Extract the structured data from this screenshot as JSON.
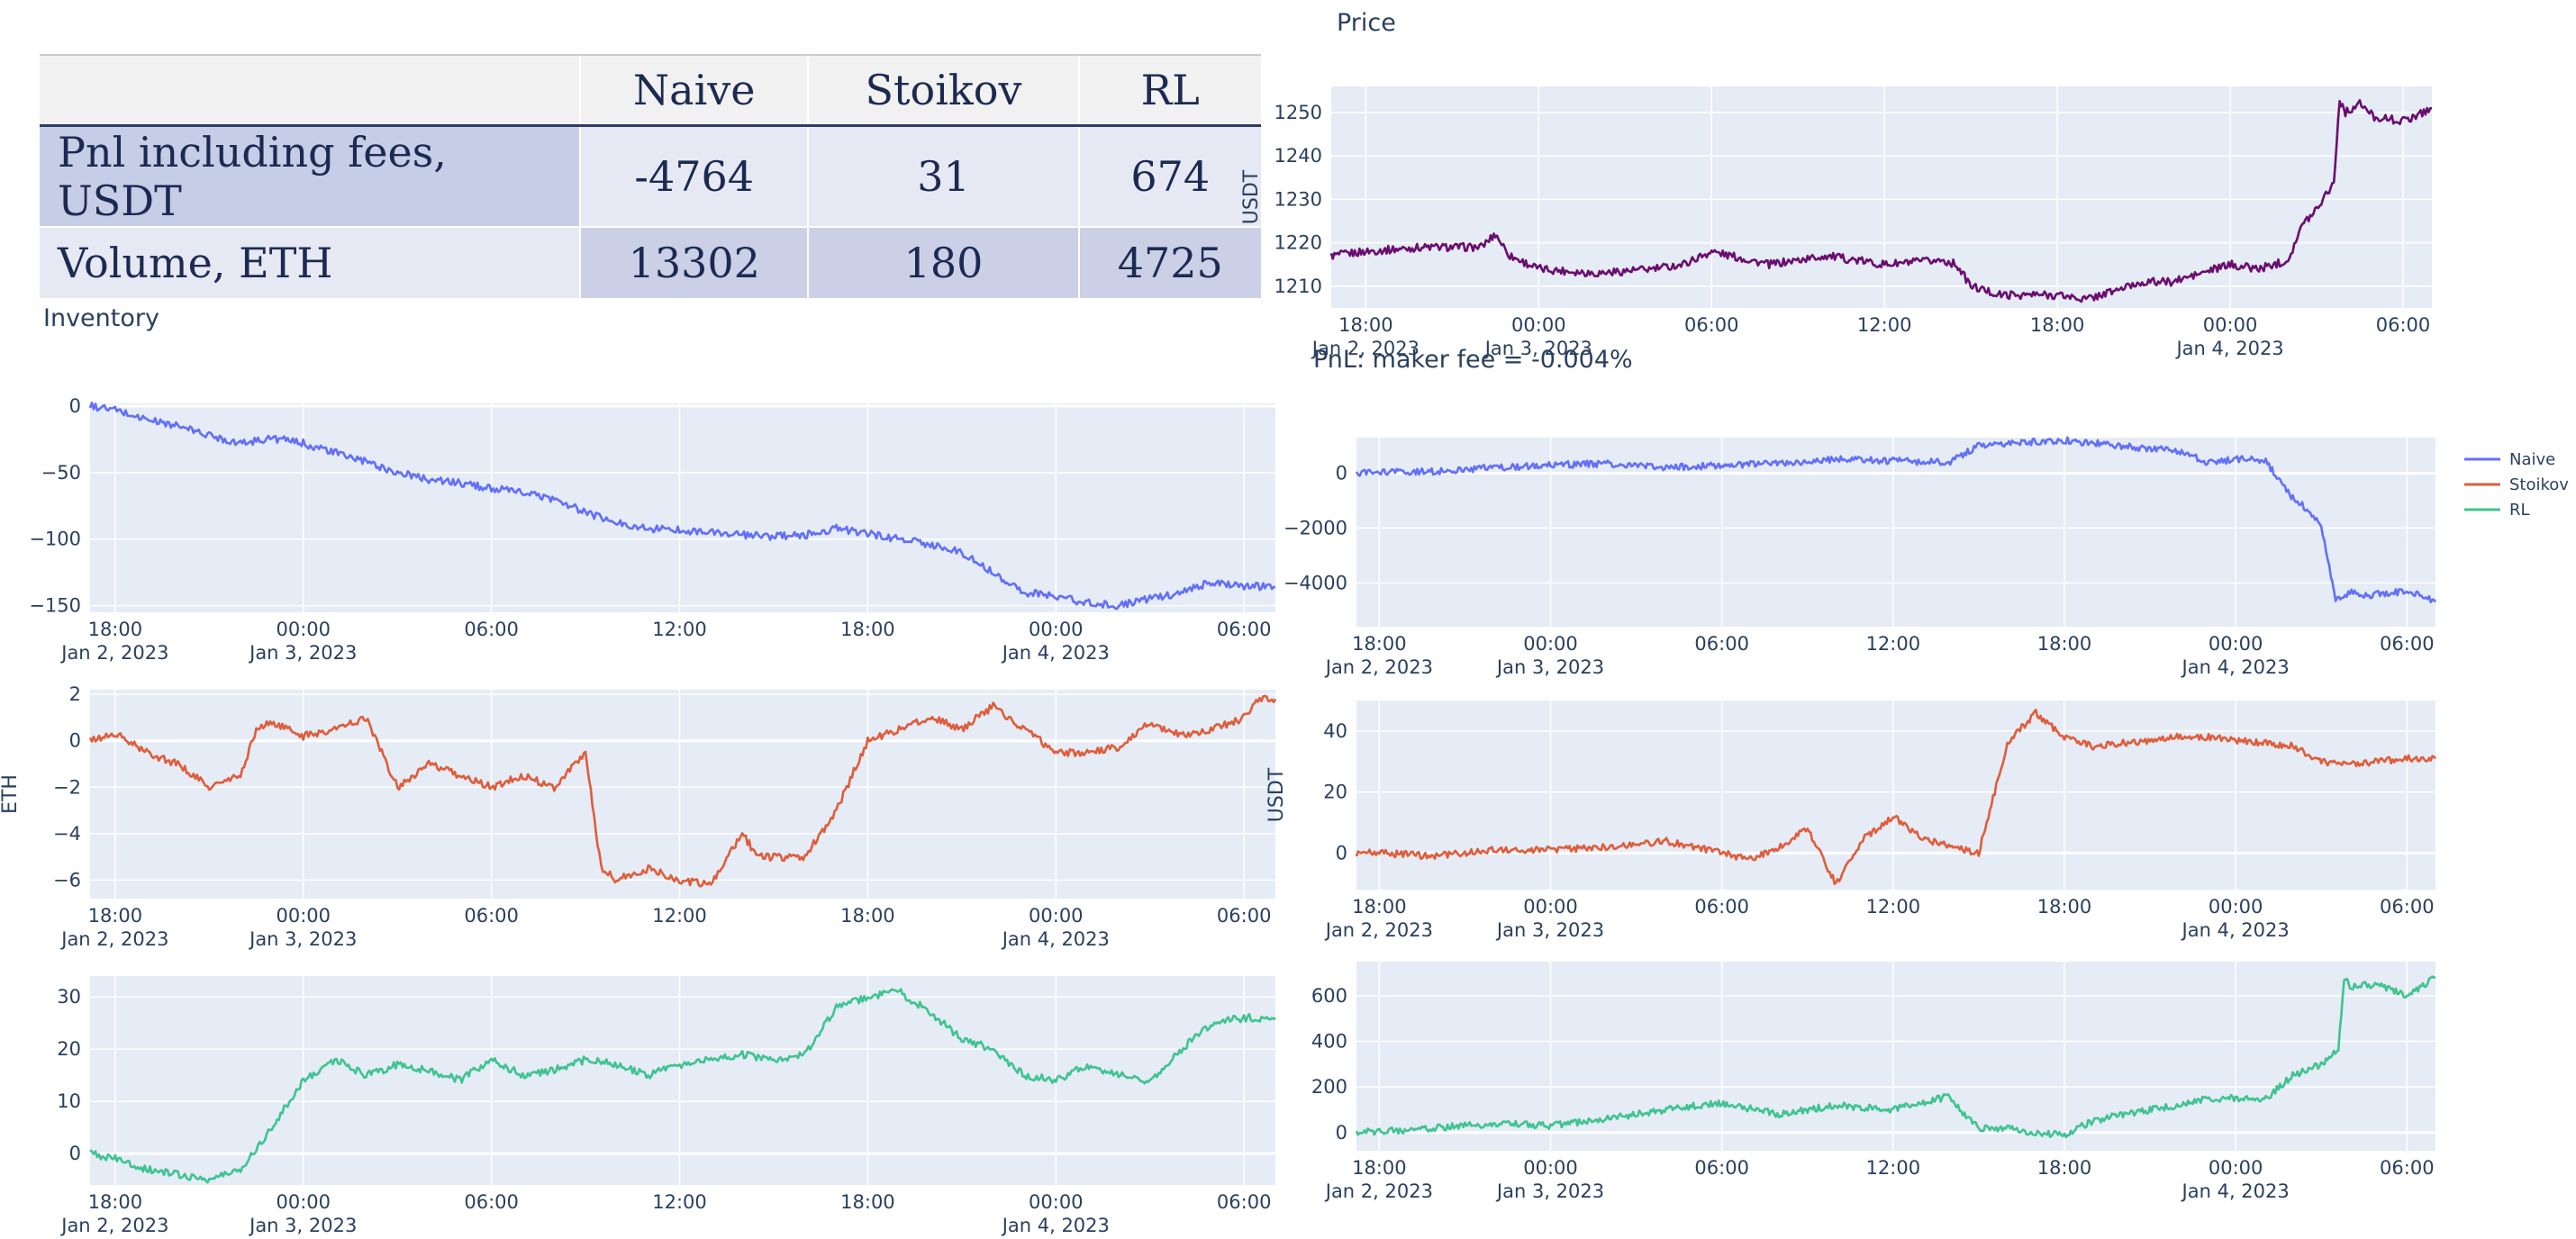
{
  "table": {
    "headers": [
      "",
      "Naive",
      "Stoikov",
      "RL"
    ],
    "rows": [
      {
        "label": "Pnl including fees, USDT",
        "values": [
          "-4764",
          "31",
          "674"
        ]
      },
      {
        "label": "Volume, ETH",
        "values": [
          "13302",
          "180",
          "4725"
        ]
      }
    ]
  },
  "titles": {
    "inventory": "Inventory",
    "price": "Price",
    "pnl": "PnL: maker fee = -0.004%"
  },
  "colors": {
    "Naive": "#636efa",
    "Stoikov": "#e05c3a",
    "RL": "#3fc390",
    "price": "#6a0d70",
    "plot_bg": "#e5ecf6",
    "grid": "#ffffff",
    "text": "#2a3f5f"
  },
  "chart_data": [
    {
      "id": "price",
      "type": "line",
      "series_color": "price",
      "ylabel": "USDT",
      "ylim": [
        1205,
        1256
      ],
      "yticks": [
        1210,
        1220,
        1230,
        1240,
        1250
      ],
      "x_range_hours": [
        -1.2,
        37.0
      ],
      "xticks": [
        {
          "h": 0,
          "l1": "18:00",
          "l2": "Jan 2, 2023"
        },
        {
          "h": 6,
          "l1": "00:00",
          "l2": "Jan 3, 2023"
        },
        {
          "h": 12,
          "l1": "06:00",
          "l2": ""
        },
        {
          "h": 18,
          "l1": "12:00",
          "l2": ""
        },
        {
          "h": 24,
          "l1": "18:00",
          "l2": ""
        },
        {
          "h": 30,
          "l1": "00:00",
          "l2": "Jan 4, 2023"
        },
        {
          "h": 36,
          "l1": "06:00",
          "l2": ""
        }
      ],
      "x_hours": [
        -1.2,
        0,
        2,
        4,
        4.5,
        5,
        6,
        8,
        10,
        11,
        12,
        14,
        16,
        18,
        20,
        20.5,
        21,
        22,
        24,
        25,
        26,
        27,
        28,
        29,
        30,
        31,
        32,
        32.5,
        33,
        33.6,
        33.8,
        34,
        34.5,
        35,
        36,
        37
      ],
      "values": [
        1217,
        1218,
        1219,
        1219,
        1222,
        1217,
        1214,
        1213,
        1214,
        1215,
        1218,
        1215,
        1217,
        1215,
        1216,
        1215,
        1210,
        1208,
        1208,
        1207,
        1209,
        1211,
        1211,
        1213,
        1215,
        1214,
        1216,
        1224,
        1228,
        1234,
        1253,
        1250,
        1252,
        1249,
        1248,
        1251
      ],
      "title": "Price"
    },
    {
      "id": "inv_naive",
      "type": "line",
      "series_color": "Naive",
      "ylabel": "",
      "ylim": [
        -155,
        2
      ],
      "yticks": [
        0,
        -50,
        -100,
        -150
      ],
      "x_range_hours": [
        -0.8,
        37.0
      ],
      "xticks": [
        {
          "h": 0,
          "l1": "18:00",
          "l2": "Jan 2, 2023"
        },
        {
          "h": 6,
          "l1": "00:00",
          "l2": "Jan 3, 2023"
        },
        {
          "h": 12,
          "l1": "06:00",
          "l2": ""
        },
        {
          "h": 18,
          "l1": "12:00",
          "l2": ""
        },
        {
          "h": 24,
          "l1": "18:00",
          "l2": ""
        },
        {
          "h": 30,
          "l1": "00:00",
          "l2": "Jan 4, 2023"
        },
        {
          "h": 36,
          "l1": "06:00",
          "l2": ""
        }
      ],
      "x_hours": [
        -0.8,
        0,
        1,
        2,
        3,
        4,
        5,
        6,
        7,
        8,
        9,
        10,
        11,
        12,
        13,
        14,
        15,
        16,
        17,
        18,
        19,
        20,
        21,
        22,
        23,
        24,
        25,
        26,
        27,
        28,
        29,
        30,
        31,
        32,
        33,
        34,
        35,
        36,
        37
      ],
      "values": [
        0,
        -3,
        -10,
        -15,
        -22,
        -28,
        -24,
        -28,
        -35,
        -42,
        -50,
        -55,
        -58,
        -62,
        -65,
        -70,
        -80,
        -88,
        -92,
        -93,
        -95,
        -97,
        -98,
        -97,
        -92,
        -96,
        -100,
        -104,
        -110,
        -125,
        -140,
        -143,
        -148,
        -150,
        -145,
        -140,
        -132,
        -135,
        -136
      ],
      "title": ""
    },
    {
      "id": "inv_stoikov",
      "type": "line",
      "series_color": "Stoikov",
      "ylabel": "ETH",
      "ylim": [
        -6.8,
        2.2
      ],
      "yticks": [
        2,
        0,
        -2,
        -4,
        -6
      ],
      "x_range_hours": [
        -0.8,
        37.0
      ],
      "xticks": [
        {
          "h": 0,
          "l1": "18:00",
          "l2": "Jan 2, 2023"
        },
        {
          "h": 6,
          "l1": "00:00",
          "l2": "Jan 3, 2023"
        },
        {
          "h": 12,
          "l1": "06:00",
          "l2": ""
        },
        {
          "h": 18,
          "l1": "12:00",
          "l2": ""
        },
        {
          "h": 24,
          "l1": "18:00",
          "l2": ""
        },
        {
          "h": 30,
          "l1": "00:00",
          "l2": "Jan 4, 2023"
        },
        {
          "h": 36,
          "l1": "06:00",
          "l2": ""
        }
      ],
      "x_hours": [
        -0.8,
        0,
        1,
        2,
        3,
        4,
        4.5,
        5,
        6,
        7,
        8,
        9,
        10,
        11,
        12,
        13,
        14,
        15,
        15.5,
        16,
        17,
        18,
        19,
        20,
        20.5,
        21,
        22,
        23,
        24,
        25,
        26,
        27,
        28,
        29,
        30,
        31,
        32,
        33,
        34,
        35,
        36,
        36.5,
        37
      ],
      "values": [
        0,
        0.3,
        -0.5,
        -1,
        -2,
        -1.5,
        0.5,
        0.8,
        0.2,
        0.5,
        1,
        -2,
        -1,
        -1.5,
        -2,
        -1.5,
        -2,
        -0.5,
        -5.5,
        -6,
        -5.5,
        -6,
        -6.2,
        -4,
        -5,
        -5,
        -5,
        -3,
        0,
        0.5,
        1,
        0.5,
        1.5,
        0.5,
        -0.5,
        -0.5,
        -0.3,
        0.8,
        0.2,
        0.5,
        1,
        1.8,
        1.8
      ],
      "title": ""
    },
    {
      "id": "inv_rl",
      "type": "line",
      "series_color": "RL",
      "ylabel": "",
      "ylim": [
        -6,
        34
      ],
      "yticks": [
        0,
        10,
        20,
        30
      ],
      "x_range_hours": [
        -0.8,
        37.0
      ],
      "xticks": [
        {
          "h": 0,
          "l1": "18:00",
          "l2": "Jan 2, 2023"
        },
        {
          "h": 6,
          "l1": "00:00",
          "l2": "Jan 3, 2023"
        },
        {
          "h": 12,
          "l1": "06:00",
          "l2": ""
        },
        {
          "h": 18,
          "l1": "12:00",
          "l2": ""
        },
        {
          "h": 24,
          "l1": "18:00",
          "l2": ""
        },
        {
          "h": 30,
          "l1": "00:00",
          "l2": "Jan 4, 2023"
        },
        {
          "h": 36,
          "l1": "06:00",
          "l2": ""
        }
      ],
      "x_hours": [
        -0.8,
        0,
        1,
        2,
        3,
        4,
        5,
        6,
        7,
        8,
        9,
        10,
        11,
        12,
        13,
        14,
        15,
        16,
        17,
        18,
        19,
        20,
        21,
        22,
        23,
        24,
        25,
        26,
        27,
        28,
        29,
        30,
        31,
        32,
        33,
        34,
        35,
        36,
        37
      ],
      "values": [
        0,
        -1,
        -3,
        -4,
        -5,
        -3,
        5,
        14,
        18,
        15,
        17,
        16,
        14,
        18,
        15,
        16,
        18,
        17,
        15,
        17,
        18,
        19,
        18,
        19,
        28,
        30,
        31,
        27,
        22,
        20,
        15,
        14,
        17,
        15,
        14,
        20,
        25,
        26,
        26
      ],
      "title": ""
    },
    {
      "id": "pnl_naive",
      "type": "line",
      "series_color": "Naive",
      "ylabel": "",
      "ylim": [
        -5600,
        1300
      ],
      "yticks": [
        0,
        -2000,
        -4000
      ],
      "x_range_hours": [
        -0.8,
        37.0
      ],
      "xticks": [
        {
          "h": 0,
          "l1": "18:00",
          "l2": "Jan 2, 2023"
        },
        {
          "h": 6,
          "l1": "00:00",
          "l2": "Jan 3, 2023"
        },
        {
          "h": 12,
          "l1": "06:00",
          "l2": ""
        },
        {
          "h": 18,
          "l1": "12:00",
          "l2": ""
        },
        {
          "h": 24,
          "l1": "18:00",
          "l2": ""
        },
        {
          "h": 30,
          "l1": "00:00",
          "l2": "Jan 4, 2023"
        },
        {
          "h": 36,
          "l1": "06:00",
          "l2": ""
        }
      ],
      "x_hours": [
        -0.8,
        0,
        2,
        4,
        6,
        8,
        10,
        12,
        14,
        16,
        18,
        20,
        21,
        22,
        24,
        26,
        28,
        29,
        30,
        31,
        32,
        32.5,
        33,
        33.5,
        34,
        34.5,
        35,
        36,
        37
      ],
      "values": [
        0,
        20,
        80,
        200,
        300,
        350,
        200,
        300,
        350,
        500,
        450,
        400,
        1000,
        1100,
        1200,
        1000,
        800,
        400,
        500,
        500,
        -900,
        -1300,
        -1900,
        -4700,
        -4300,
        -4500,
        -4400,
        -4300,
        -4700
      ],
      "title": ""
    },
    {
      "id": "pnl_stoikov",
      "type": "line",
      "series_color": "Stoikov",
      "ylabel": "USDT",
      "ylim": [
        -12,
        50
      ],
      "yticks": [
        0,
        20,
        40
      ],
      "x_range_hours": [
        -0.8,
        37.0
      ],
      "xticks": [
        {
          "h": 0,
          "l1": "18:00",
          "l2": "Jan 2, 2023"
        },
        {
          "h": 6,
          "l1": "00:00",
          "l2": "Jan 3, 2023"
        },
        {
          "h": 12,
          "l1": "06:00",
          "l2": ""
        },
        {
          "h": 18,
          "l1": "12:00",
          "l2": ""
        },
        {
          "h": 24,
          "l1": "18:00",
          "l2": ""
        },
        {
          "h": 30,
          "l1": "00:00",
          "l2": "Jan 4, 2023"
        },
        {
          "h": 36,
          "l1": "06:00",
          "l2": ""
        }
      ],
      "x_hours": [
        -0.8,
        0,
        2,
        4,
        6,
        8,
        10,
        12,
        13,
        14,
        15,
        16,
        17,
        18,
        19,
        20,
        21,
        22,
        23,
        24,
        25,
        26,
        27,
        28,
        29,
        30,
        31,
        32,
        33,
        34,
        35,
        36,
        37
      ],
      "values": [
        0,
        0,
        -1,
        1,
        1,
        2,
        4,
        0,
        -2,
        2,
        8,
        -10,
        5,
        12,
        5,
        2,
        0,
        36,
        46,
        38,
        35,
        36,
        37,
        38,
        38,
        37,
        36,
        35,
        30,
        29,
        30,
        31,
        31
      ],
      "title": ""
    },
    {
      "id": "pnl_rl",
      "type": "line",
      "series_color": "RL",
      "ylabel": "",
      "ylim": [
        -80,
        750
      ],
      "yticks": [
        0,
        200,
        400,
        600
      ],
      "x_range_hours": [
        -0.8,
        37.0
      ],
      "xticks": [
        {
          "h": 0,
          "l1": "18:00",
          "l2": "Jan 2, 2023"
        },
        {
          "h": 6,
          "l1": "00:00",
          "l2": "Jan 3, 2023"
        },
        {
          "h": 12,
          "l1": "06:00",
          "l2": ""
        },
        {
          "h": 18,
          "l1": "12:00",
          "l2": ""
        },
        {
          "h": 24,
          "l1": "18:00",
          "l2": ""
        },
        {
          "h": 30,
          "l1": "00:00",
          "l2": "Jan 4, 2023"
        },
        {
          "h": 36,
          "l1": "06:00",
          "l2": ""
        }
      ],
      "x_hours": [
        -0.8,
        0,
        2,
        4,
        6,
        8,
        10,
        12,
        14,
        16,
        18,
        20,
        20.5,
        21,
        22,
        23,
        24,
        25,
        26,
        27,
        28,
        29,
        30,
        31,
        32,
        33,
        33.6,
        33.8,
        34,
        35,
        36,
        37
      ],
      "values": [
        0,
        5,
        20,
        40,
        30,
        60,
        100,
        130,
        80,
        120,
        100,
        160,
        80,
        20,
        20,
        0,
        -10,
        50,
        80,
        100,
        120,
        150,
        150,
        140,
        250,
        300,
        360,
        680,
        640,
        650,
        600,
        680
      ],
      "title": ""
    }
  ],
  "legend": {
    "position": "top-right",
    "items": [
      {
        "name": "Naive",
        "color": "Naive"
      },
      {
        "name": "Stoikov",
        "color": "Stoikov"
      },
      {
        "name": "RL",
        "color": "RL"
      }
    ]
  }
}
